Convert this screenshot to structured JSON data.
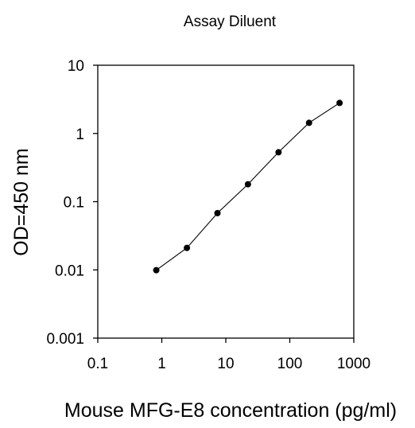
{
  "chart_data": {
    "type": "line",
    "title": "Assay Diluent",
    "xlabel": "Mouse MFG-E8 concentration (pg/ml)",
    "ylabel": "OD=450 nm",
    "x_scale": "log",
    "y_scale": "log",
    "xlim": [
      0.1,
      1000
    ],
    "ylim": [
      0.001,
      10
    ],
    "x_ticks": [
      0.1,
      1,
      10,
      100,
      1000
    ],
    "x_tick_labels": [
      "0.1",
      "1",
      "10",
      "100",
      "1000"
    ],
    "y_ticks": [
      0.001,
      0.01,
      0.1,
      1,
      10
    ],
    "y_tick_labels": [
      "0.001",
      "0.01",
      "0.1",
      "1",
      "10"
    ],
    "grid": false,
    "legend": "none",
    "series": [
      {
        "marker": "circle",
        "color": "#000000",
        "x": [
          0.82,
          2.47,
          7.41,
          22.2,
          66.7,
          200,
          600
        ],
        "y": [
          0.0099,
          0.021,
          0.068,
          0.18,
          0.53,
          1.43,
          2.8
        ]
      }
    ]
  }
}
